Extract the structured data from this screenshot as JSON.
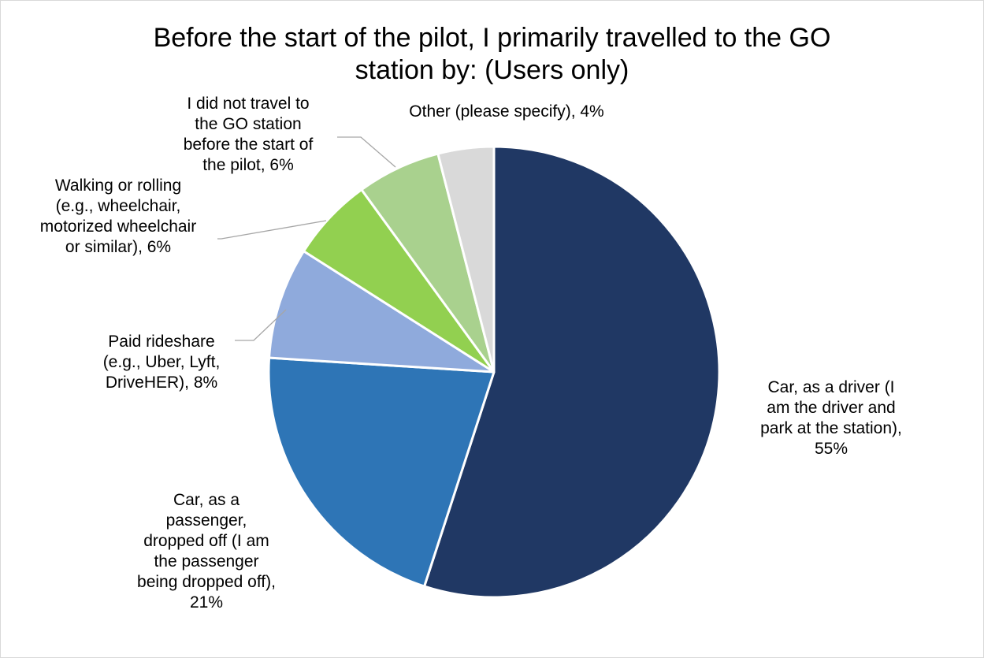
{
  "chart_data": {
    "type": "pie",
    "title_lines": [
      "Before the start of the pilot, I primarily travelled to the GO",
      "station by: (Users only)"
    ],
    "slices": [
      {
        "label": "Car, as a driver (I am the driver and park at the station)",
        "value": 55,
        "color": "#203864",
        "label_lines": [
          "Car, as a driver (I",
          "am the driver and",
          "park at the station),",
          "55%"
        ]
      },
      {
        "label": "Car, as a passenger, dropped off (I am the passenger being dropped off)",
        "value": 21,
        "color": "#2e75b6",
        "label_lines": [
          "Car, as a",
          "passenger,",
          "dropped off (I am",
          "the passenger",
          "being dropped off),",
          "21%"
        ]
      },
      {
        "label": "Paid rideshare (e.g., Uber, Lyft, DriveHER)",
        "value": 8,
        "color": "#8faadc",
        "label_lines": [
          "Paid rideshare",
          "(e.g., Uber, Lyft,",
          "DriveHER), 8%"
        ]
      },
      {
        "label": "Walking or rolling (e.g., wheelchair, motorized wheelchair or similar)",
        "value": 6,
        "color": "#92d050",
        "label_lines": [
          "Walking or rolling",
          "(e.g., wheelchair,",
          "motorized wheelchair",
          "or similar), 6%"
        ]
      },
      {
        "label": "I did not travel to the GO station before the start of the pilot",
        "value": 6,
        "color": "#a9d18e",
        "label_lines": [
          "I did not travel to",
          "the GO station",
          "before the start of",
          "the pilot, 6%"
        ]
      },
      {
        "label": "Other (please specify)",
        "value": 4,
        "color": "#d9d9d9",
        "label_lines": [
          "Other (please specify), 4%"
        ]
      }
    ]
  }
}
